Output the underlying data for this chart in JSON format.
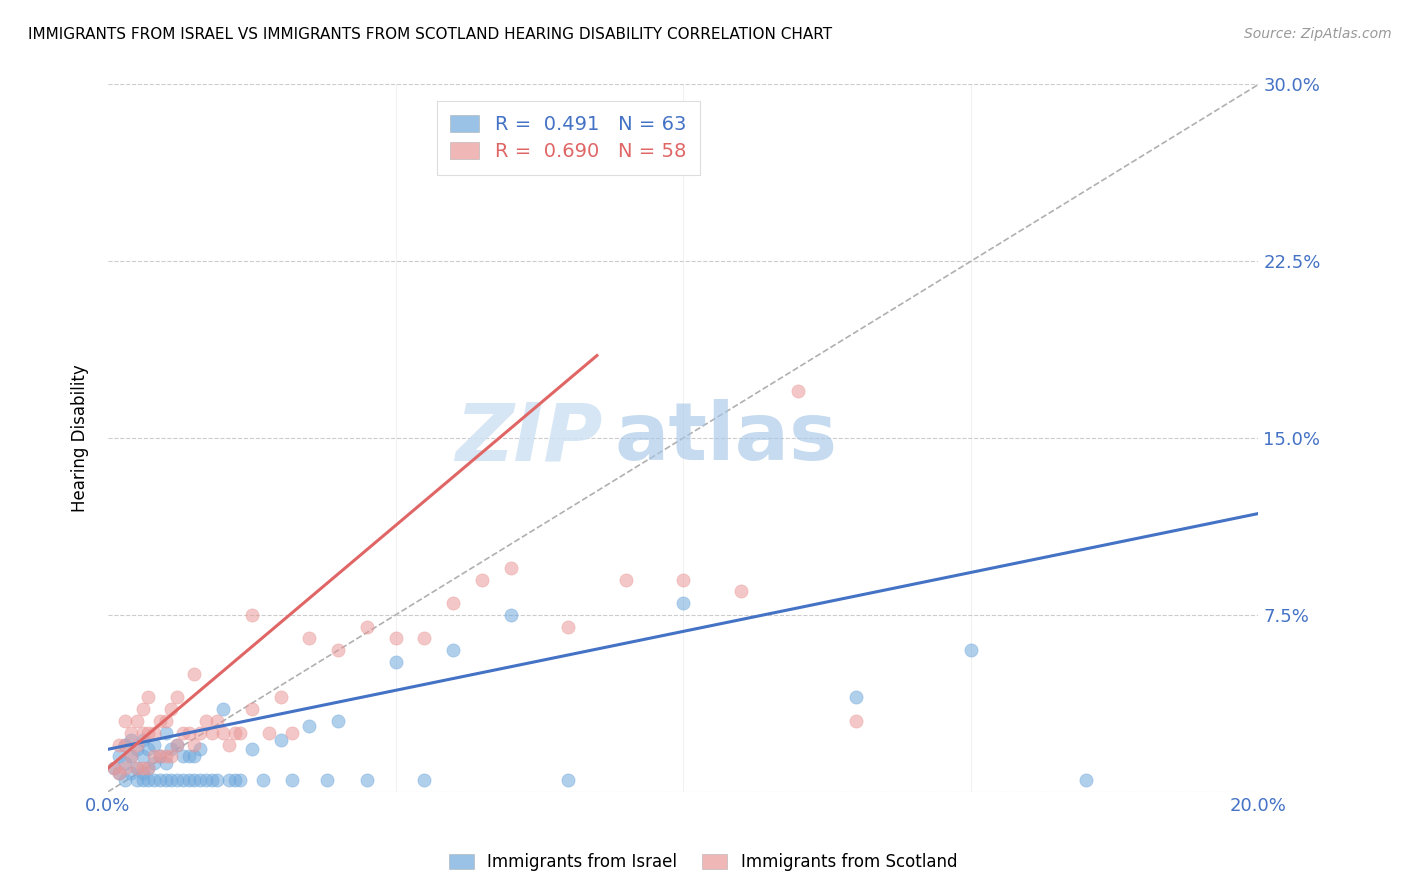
{
  "title": "IMMIGRANTS FROM ISRAEL VS IMMIGRANTS FROM SCOTLAND HEARING DISABILITY CORRELATION CHART",
  "source": "Source: ZipAtlas.com",
  "ylabel_label": "Hearing Disability",
  "x_min": 0.0,
  "x_max": 0.2,
  "y_min": 0.0,
  "y_max": 0.3,
  "israel_color": "#6fa8dc",
  "scotland_color": "#ea9999",
  "israel_R": 0.491,
  "israel_N": 63,
  "scotland_R": 0.69,
  "scotland_N": 58,
  "israel_line_color": "#4472c4",
  "scotland_line_color": "#e06666",
  "diagonal_color": "#b0b0b0",
  "watermark_zip": "ZIP",
  "watermark_atlas": "atlas",
  "israel_scatter_x": [
    0.001,
    0.002,
    0.002,
    0.003,
    0.003,
    0.003,
    0.004,
    0.004,
    0.004,
    0.005,
    0.005,
    0.005,
    0.006,
    0.006,
    0.006,
    0.006,
    0.007,
    0.007,
    0.007,
    0.008,
    0.008,
    0.008,
    0.009,
    0.009,
    0.01,
    0.01,
    0.01,
    0.011,
    0.011,
    0.012,
    0.012,
    0.013,
    0.013,
    0.014,
    0.014,
    0.015,
    0.015,
    0.016,
    0.016,
    0.017,
    0.018,
    0.019,
    0.02,
    0.021,
    0.022,
    0.023,
    0.025,
    0.027,
    0.03,
    0.032,
    0.035,
    0.038,
    0.04,
    0.045,
    0.05,
    0.055,
    0.06,
    0.07,
    0.08,
    0.1,
    0.13,
    0.15,
    0.17
  ],
  "israel_scatter_y": [
    0.01,
    0.008,
    0.015,
    0.005,
    0.012,
    0.02,
    0.008,
    0.015,
    0.022,
    0.005,
    0.01,
    0.018,
    0.005,
    0.008,
    0.015,
    0.022,
    0.005,
    0.01,
    0.018,
    0.005,
    0.012,
    0.02,
    0.005,
    0.015,
    0.005,
    0.012,
    0.025,
    0.005,
    0.018,
    0.005,
    0.02,
    0.005,
    0.015,
    0.005,
    0.015,
    0.005,
    0.015,
    0.005,
    0.018,
    0.005,
    0.005,
    0.005,
    0.035,
    0.005,
    0.005,
    0.005,
    0.018,
    0.005,
    0.022,
    0.005,
    0.028,
    0.005,
    0.03,
    0.005,
    0.055,
    0.005,
    0.06,
    0.075,
    0.005,
    0.08,
    0.04,
    0.06,
    0.005
  ],
  "israel_line_x0": 0.0,
  "israel_line_x1": 0.2,
  "israel_line_y0": 0.018,
  "israel_line_y1": 0.118,
  "scotland_scatter_x": [
    0.001,
    0.002,
    0.002,
    0.003,
    0.003,
    0.003,
    0.004,
    0.004,
    0.005,
    0.005,
    0.005,
    0.006,
    0.006,
    0.006,
    0.007,
    0.007,
    0.007,
    0.008,
    0.008,
    0.009,
    0.009,
    0.01,
    0.01,
    0.011,
    0.011,
    0.012,
    0.012,
    0.013,
    0.014,
    0.015,
    0.015,
    0.016,
    0.017,
    0.018,
    0.019,
    0.02,
    0.021,
    0.022,
    0.023,
    0.025,
    0.025,
    0.028,
    0.03,
    0.032,
    0.035,
    0.04,
    0.045,
    0.05,
    0.055,
    0.06,
    0.065,
    0.07,
    0.08,
    0.09,
    0.1,
    0.11,
    0.12,
    0.13
  ],
  "scotland_scatter_y": [
    0.01,
    0.008,
    0.02,
    0.01,
    0.02,
    0.03,
    0.015,
    0.025,
    0.01,
    0.02,
    0.03,
    0.01,
    0.025,
    0.035,
    0.01,
    0.025,
    0.04,
    0.015,
    0.025,
    0.015,
    0.03,
    0.015,
    0.03,
    0.015,
    0.035,
    0.02,
    0.04,
    0.025,
    0.025,
    0.02,
    0.05,
    0.025,
    0.03,
    0.025,
    0.03,
    0.025,
    0.02,
    0.025,
    0.025,
    0.035,
    0.075,
    0.025,
    0.04,
    0.025,
    0.065,
    0.06,
    0.07,
    0.065,
    0.065,
    0.08,
    0.09,
    0.095,
    0.07,
    0.09,
    0.09,
    0.085,
    0.17,
    0.03
  ],
  "scotland_line_x0": 0.0,
  "scotland_line_x1": 0.085,
  "scotland_line_y0": 0.01,
  "scotland_line_y1": 0.185
}
